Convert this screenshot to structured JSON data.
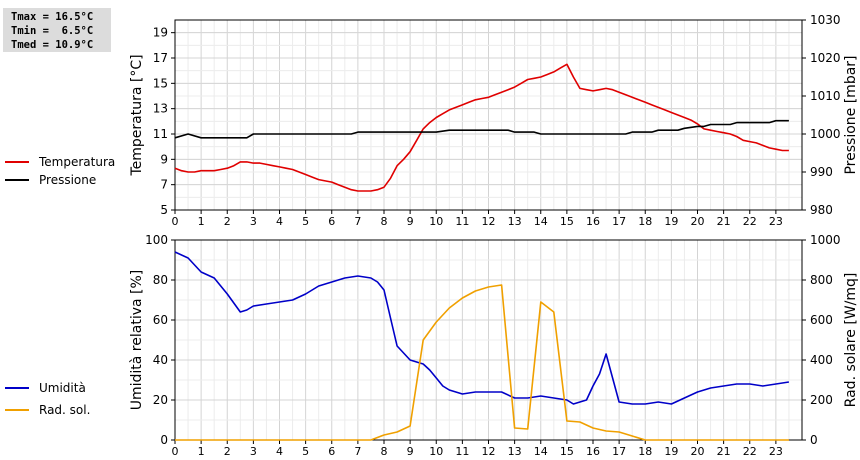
{
  "stats": {
    "tmax": "Tmax = 16.5°C",
    "tmin": "Tmin =  6.5°C",
    "tmed": "Tmed = 10.9°C"
  },
  "legend": {
    "top": [
      {
        "label": "Temperatura",
        "color": "#e00000"
      },
      {
        "label": "Pressione",
        "color": "#000000"
      }
    ],
    "bottom": [
      {
        "label": "Umidità",
        "color": "#0000c8"
      },
      {
        "label": "Rad. sol.",
        "color": "#f0a000"
      }
    ]
  },
  "chart_data": [
    {
      "type": "line",
      "ylabel": "Temperatura [°C]",
      "y2label": "Pressione [mbar]",
      "ylim": [
        5,
        20
      ],
      "y2lim": [
        980,
        1030
      ],
      "xlim": [
        0,
        24
      ],
      "yticks": [
        5,
        7,
        9,
        11,
        13,
        15,
        17,
        19
      ],
      "y2ticks": [
        980,
        990,
        1000,
        1010,
        1020,
        1030
      ],
      "xticks": [
        0,
        1,
        2,
        3,
        4,
        5,
        6,
        7,
        8,
        9,
        10,
        11,
        12,
        13,
        14,
        15,
        16,
        17,
        18,
        19,
        20,
        21,
        22,
        23
      ],
      "grid": true,
      "series": [
        {
          "name": "Temperatura",
          "axis": "left",
          "color": "#e00000",
          "x": [
            0,
            0.25,
            0.5,
            0.75,
            1,
            1.25,
            1.5,
            1.75,
            2,
            2.25,
            2.5,
            2.75,
            3,
            3.25,
            3.5,
            3.75,
            4,
            4.25,
            4.5,
            4.75,
            5,
            5.25,
            5.5,
            5.75,
            6,
            6.25,
            6.5,
            6.75,
            7,
            7.25,
            7.5,
            7.75,
            8,
            8.25,
            8.5,
            8.75,
            9,
            9.25,
            9.5,
            9.75,
            10,
            10.25,
            10.5,
            10.75,
            11,
            11.25,
            11.5,
            11.75,
            12,
            12.25,
            12.5,
            12.75,
            13,
            13.25,
            13.5,
            13.75,
            14,
            14.25,
            14.5,
            14.75,
            15,
            15.25,
            15.5,
            15.75,
            16,
            16.25,
            16.5,
            16.75,
            17,
            17.25,
            17.5,
            17.75,
            18,
            18.25,
            18.5,
            18.75,
            19,
            19.25,
            19.5,
            19.75,
            20,
            20.25,
            20.5,
            20.75,
            21,
            21.25,
            21.5,
            21.75,
            22,
            22.25,
            22.5,
            22.75,
            23,
            23.25,
            23.5
          ],
          "y": [
            8.3,
            8.1,
            8.0,
            8.0,
            8.1,
            8.1,
            8.1,
            8.2,
            8.3,
            8.5,
            8.8,
            8.8,
            8.7,
            8.7,
            8.6,
            8.5,
            8.4,
            8.3,
            8.2,
            8.0,
            7.8,
            7.6,
            7.4,
            7.3,
            7.2,
            7.0,
            6.8,
            6.6,
            6.5,
            6.5,
            6.5,
            6.6,
            6.8,
            7.5,
            8.5,
            9.0,
            9.6,
            10.5,
            11.4,
            11.9,
            12.3,
            12.6,
            12.9,
            13.1,
            13.3,
            13.5,
            13.7,
            13.8,
            13.9,
            14.1,
            14.3,
            14.5,
            14.7,
            15.0,
            15.3,
            15.4,
            15.5,
            15.7,
            15.9,
            16.2,
            16.5,
            15.5,
            14.6,
            14.5,
            14.4,
            14.5,
            14.6,
            14.5,
            14.3,
            14.1,
            13.9,
            13.7,
            13.5,
            13.3,
            13.1,
            12.9,
            12.7,
            12.5,
            12.3,
            12.1,
            11.8,
            11.4,
            11.3,
            11.2,
            11.1,
            11.0,
            10.8,
            10.5,
            10.4,
            10.3,
            10.1,
            9.9,
            9.8,
            9.7,
            9.7
          ]
        },
        {
          "name": "Pressione",
          "axis": "right",
          "color": "#000000",
          "x": [
            0,
            0.5,
            1,
            1.5,
            2,
            2.5,
            2.75,
            3,
            3.5,
            4,
            4.5,
            5,
            5.5,
            6,
            6.5,
            6.75,
            7,
            7.5,
            8,
            8.5,
            9,
            9.5,
            9.75,
            10,
            10.5,
            11,
            11.5,
            12,
            12.5,
            12.75,
            13,
            13.5,
            13.75,
            14,
            14.5,
            15,
            15.5,
            16,
            16.5,
            17,
            17.25,
            17.5,
            18,
            18.25,
            18.5,
            19,
            19.25,
            19.5,
            20,
            20.25,
            20.5,
            21,
            21.25,
            21.5,
            22,
            22.5,
            22.75,
            23,
            23.5
          ],
          "y": [
            999,
            1000,
            999,
            999,
            999,
            999,
            999,
            1000,
            1000,
            1000,
            1000,
            1000,
            1000,
            1000,
            1000,
            1000,
            1000.5,
            1000.5,
            1000.5,
            1000.5,
            1000.5,
            1000.5,
            1000.5,
            1000.5,
            1001,
            1001,
            1001,
            1001,
            1001,
            1001,
            1000.5,
            1000.5,
            1000.5,
            1000,
            1000,
            1000,
            1000,
            1000,
            1000,
            1000,
            1000,
            1000.5,
            1000.5,
            1000.5,
            1001,
            1001,
            1001,
            1001.5,
            1002,
            1002,
            1002.5,
            1002.5,
            1002.5,
            1003,
            1003,
            1003,
            1003,
            1003.5,
            1003.5
          ]
        }
      ]
    },
    {
      "type": "line",
      "ylabel": "Umidità relativa [%]",
      "y2label": "Rad. solare [W/mq]",
      "ylim": [
        0,
        100
      ],
      "y2lim": [
        0,
        1000
      ],
      "xlim": [
        0,
        24
      ],
      "yticks": [
        0,
        20,
        40,
        60,
        80,
        100
      ],
      "y2ticks": [
        0,
        200,
        400,
        600,
        800,
        1000
      ],
      "xticks": [
        0,
        1,
        2,
        3,
        4,
        5,
        6,
        7,
        8,
        9,
        10,
        11,
        12,
        13,
        14,
        15,
        16,
        17,
        18,
        19,
        20,
        21,
        22,
        23
      ],
      "grid": true,
      "series": [
        {
          "name": "Umidità",
          "axis": "left",
          "color": "#0000c8",
          "x": [
            0,
            0.5,
            1,
            1.5,
            2,
            2.5,
            2.75,
            3,
            3.5,
            4,
            4.5,
            5,
            5.5,
            6,
            6.5,
            7,
            7.5,
            7.75,
            8,
            8.25,
            8.5,
            9,
            9.5,
            9.75,
            10,
            10.25,
            10.5,
            11,
            11.5,
            12,
            12.5,
            13,
            13.5,
            14,
            14.5,
            15,
            15.25,
            15.5,
            15.75,
            16,
            16.25,
            16.5,
            17,
            17.5,
            18,
            18.5,
            19,
            19.5,
            20,
            20.5,
            21,
            21.5,
            22,
            22.5,
            23,
            23.5
          ],
          "y": [
            94,
            91,
            84,
            81,
            73,
            64,
            65,
            67,
            68,
            69,
            70,
            73,
            77,
            79,
            81,
            82,
            81,
            79,
            75,
            61,
            47,
            40,
            38,
            35,
            31,
            27,
            25,
            23,
            24,
            24,
            24,
            21,
            21,
            22,
            21,
            20,
            18,
            19,
            20,
            27,
            33,
            43,
            19,
            18,
            18,
            19,
            18,
            21,
            24,
            26,
            27,
            28,
            28,
            27,
            28,
            29
          ]
        },
        {
          "name": "Rad. sol.",
          "axis": "right",
          "color": "#f0a000",
          "x": [
            0,
            1,
            2,
            3,
            4,
            5,
            6,
            7,
            7.5,
            8,
            8.5,
            9,
            9.5,
            10,
            10.5,
            11,
            11.5,
            12,
            12.5,
            13,
            13.5,
            14,
            14.5,
            15,
            15.5,
            16,
            16.5,
            17,
            17.5,
            18,
            19,
            20,
            21,
            22,
            23,
            23.5
          ],
          "y": [
            0,
            0,
            0,
            0,
            0,
            0,
            0,
            0,
            0,
            25,
            40,
            70,
            500,
            590,
            660,
            710,
            745,
            765,
            775,
            60,
            55,
            690,
            640,
            95,
            90,
            60,
            45,
            40,
            20,
            0,
            0,
            0,
            0,
            0,
            0,
            0
          ]
        }
      ]
    }
  ]
}
